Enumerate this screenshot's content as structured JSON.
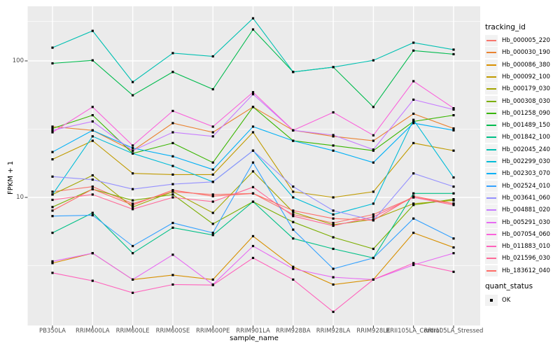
{
  "figure": {
    "background": "#FFFFFF",
    "panel_background": "#EBEBEB",
    "grid_color": "#FFFFFF",
    "tick_text_color": "#4D4D4D",
    "point_color": "#000000"
  },
  "chart_data": {
    "type": "line",
    "title": "",
    "xlabel": "sample_name",
    "ylabel": "FPKM + 1",
    "y_scale": "log10",
    "ylim": [
      1.15,
      251
    ],
    "y_ticks": [
      100,
      10
    ],
    "y_minor_gridline_values": [
      195,
      31.6,
      3.16
    ],
    "grid": true,
    "legend_position": "right",
    "categories": [
      "PB350LA",
      "RRIM600LA",
      "RRIM600LE",
      "RRIM600SE",
      "RRIM600PE",
      "RRIM901LA",
      "RRIM928BA",
      "RRIM928LA",
      "RRIM928LE",
      "RRII105LA_Control",
      "RRII105LA_Stressed"
    ],
    "series": [
      {
        "name": "Hb_000005_220",
        "color": "#F8766D",
        "values": [
          11,
          12,
          9,
          11,
          10.5,
          10.7,
          7.5,
          6.5,
          7.5,
          10,
          9
        ]
      },
      {
        "name": "Hb_000030_190",
        "color": "#EA8331",
        "values": [
          33,
          31,
          22,
          35,
          30,
          46,
          31,
          28,
          26,
          41,
          32
        ]
      },
      {
        "name": "Hb_000086_380",
        "color": "#D89000",
        "values": [
          3.3,
          3.9,
          2.5,
          2.7,
          2.5,
          5.2,
          3.1,
          2.3,
          2.5,
          5.5,
          4.3
        ]
      },
      {
        "name": "Hb_000092_100",
        "color": "#C09B00",
        "values": [
          19,
          26,
          15,
          14.7,
          14.7,
          30,
          11,
          10,
          11,
          25,
          22
        ]
      },
      {
        "name": "Hb_000179_030",
        "color": "#A3A500",
        "values": [
          10.5,
          14.5,
          8.5,
          11,
          7.7,
          15.5,
          7.8,
          6.3,
          6.9,
          9,
          9.5
        ]
      },
      {
        "name": "Hb_000308_030",
        "color": "#7CAE00",
        "values": [
          8.5,
          11.5,
          9.5,
          10.5,
          6.4,
          9.3,
          6.6,
          5.1,
          4.2,
          8.8,
          9.7
        ]
      },
      {
        "name": "Hb_001258_090",
        "color": "#39B600",
        "values": [
          32,
          40,
          21,
          25,
          18,
          46,
          26,
          24,
          22,
          36,
          40
        ]
      },
      {
        "name": "Hb_001489_150",
        "color": "#00BB4E",
        "values": [
          96,
          101,
          56,
          83,
          62,
          170,
          83,
          90,
          46,
          119,
          112
        ]
      },
      {
        "name": "Hb_001842_100",
        "color": "#00C087",
        "values": [
          5.5,
          7.7,
          3.9,
          6,
          5.3,
          9.3,
          5,
          4.2,
          3.6,
          10.7,
          10.7
        ]
      },
      {
        "name": "Hb_002045_240",
        "color": "#00C0B2",
        "values": [
          125,
          166,
          70,
          114,
          108,
          205,
          83,
          90,
          101,
          136,
          121
        ]
      },
      {
        "name": "Hb_002299_030",
        "color": "#00BCD8",
        "values": [
          10.5,
          28,
          21,
          17,
          13,
          22,
          10,
          7.5,
          9,
          37,
          14
        ]
      },
      {
        "name": "Hb_002303_070",
        "color": "#00B0F6",
        "values": [
          21.5,
          31,
          23,
          20,
          16,
          33,
          26,
          22,
          18,
          35,
          31
        ]
      },
      {
        "name": "Hb_002524_010",
        "color": "#35A2FF",
        "values": [
          7.3,
          7.4,
          4.4,
          6.5,
          5.5,
          18,
          5.8,
          3,
          3.6,
          7,
          5
        ]
      },
      {
        "name": "Hb_003641_060",
        "color": "#9590FF",
        "values": [
          14.2,
          13.5,
          11.5,
          12.5,
          13,
          22,
          12,
          8,
          6.8,
          15,
          12
        ]
      },
      {
        "name": "Hb_004881_020",
        "color": "#C77CFF",
        "values": [
          31,
          36,
          22,
          30,
          28,
          57,
          31,
          28.6,
          22.4,
          52,
          44
        ]
      },
      {
        "name": "Hb_005291_030",
        "color": "#E76BF3",
        "values": [
          3.4,
          3.9,
          2.5,
          3.8,
          2.3,
          4.4,
          3,
          2.6,
          2.5,
          3.2,
          3.9
        ]
      },
      {
        "name": "Hb_007054_060",
        "color": "#FA62DB",
        "values": [
          30,
          46,
          24,
          43,
          33,
          59,
          31,
          42,
          28.5,
          71,
          45
        ]
      },
      {
        "name": "Hb_011883_010",
        "color": "#FF62BC",
        "values": [
          2.8,
          2.45,
          2,
          2.3,
          2.28,
          3.6,
          2.5,
          1.45,
          2.5,
          3.3,
          2.85
        ]
      },
      {
        "name": "Hb_021596_030",
        "color": "#FF6A98",
        "values": [
          9.6,
          10.5,
          8.2,
          10,
          9.3,
          11.9,
          7.3,
          6.2,
          7.2,
          10,
          8.8
        ]
      },
      {
        "name": "Hb_183612_040",
        "color": "#FF6C67",
        "values": [
          8,
          11.5,
          8.8,
          11.3,
          10.2,
          10.7,
          8,
          7,
          6.8,
          10.2,
          9
        ]
      }
    ],
    "legend": {
      "color_title": "tracking_id",
      "shape_title": "quant_status",
      "shape_items": [
        {
          "label": "OK"
        }
      ]
    }
  }
}
